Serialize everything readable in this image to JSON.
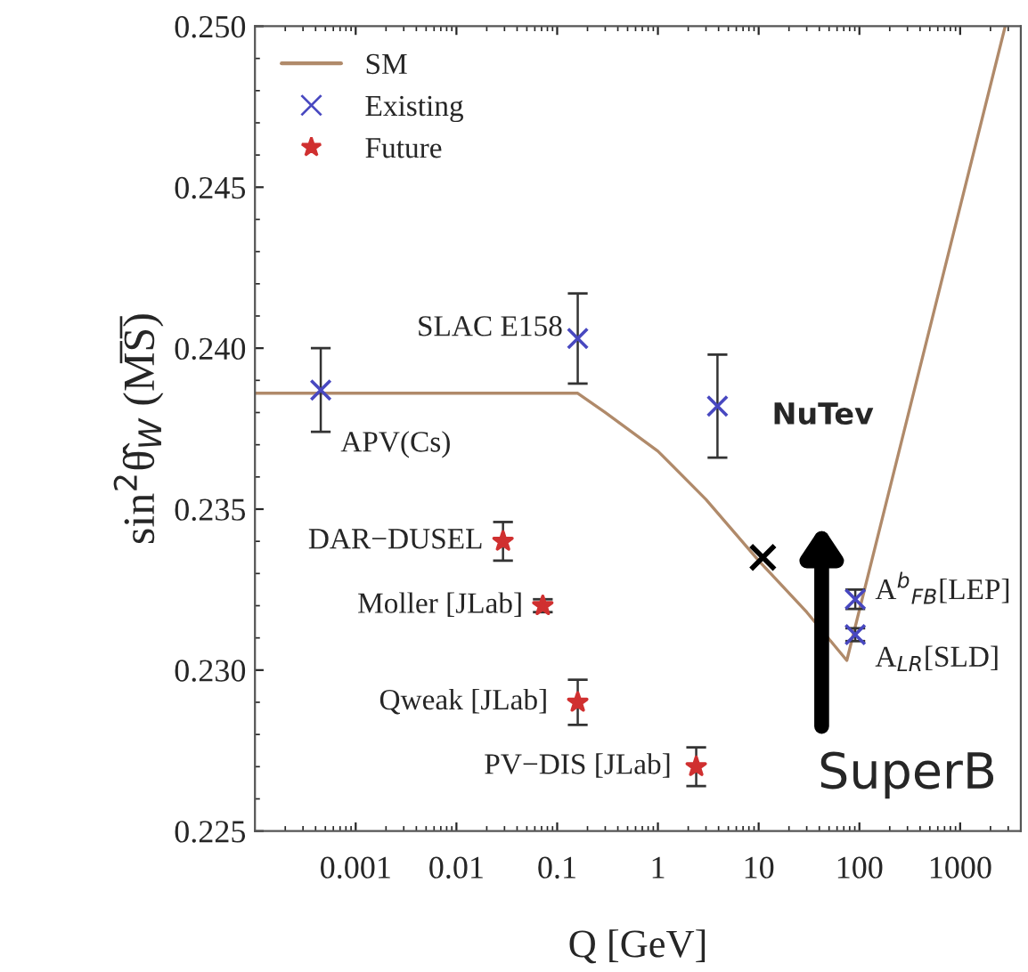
{
  "chart_data": {
    "type": "scatter",
    "xlabel": "Q [GeV]",
    "ylabel": "sin$^{2}$θ̂$_{W}$ (M̅S̅)",
    "log": "x",
    "xlim": [
      0.0001,
      4000
    ],
    "xticks": [
      0.001,
      0.01,
      0.1,
      1,
      10,
      100,
      1000
    ],
    "ylim": [
      0.225,
      0.25
    ],
    "yticks": [
      {
        "value": 0.225,
        "label": "0.225"
      },
      {
        "value": 0.23,
        "label": "0.230"
      },
      {
        "value": 0.235,
        "label": "0.235"
      },
      {
        "value": 0.24,
        "label": "0.240"
      },
      {
        "value": 0.245,
        "label": "0.245"
      },
      {
        "value": 0.25,
        "label": "0.250"
      }
    ],
    "grid": false,
    "legend": "top left",
    "series": [
      {
        "name": "SM",
        "type": "line",
        "color": "#b08a6a",
        "marker": "none",
        "x": [
          0.0001,
          0.16,
          0.3,
          1,
          3,
          10,
          30,
          75,
          2800
        ],
        "values": [
          0.2386,
          0.2386,
          0.238,
          0.2368,
          0.2353,
          0.2334,
          0.2318,
          0.2303,
          0.25
        ]
      },
      {
        "name": "Existing",
        "color": "#4848c0",
        "marker": "cross",
        "x": [
          0.00045,
          0.16,
          3.9,
          91,
          91
        ],
        "values": [
          0.2387,
          0.2403,
          0.2382,
          0.2322,
          0.2311
        ],
        "errors": [
          0.0013,
          0.0014,
          0.0016,
          0.0003,
          0.0002
        ]
      },
      {
        "name": "Future",
        "color": "#d03030",
        "marker": "star",
        "x": [
          0.029,
          0.072,
          0.16,
          2.4
        ],
        "values": [
          0.234,
          0.232,
          0.229,
          0.227
        ],
        "errors": [
          0.0006,
          0.0002,
          0.0007,
          0.0006
        ]
      },
      {
        "color": "#000000",
        "marker": "cross",
        "x": [
          11
        ],
        "values": [
          0.2335
        ]
      }
    ],
    "annotations": [
      {
        "text": "APV(Cs)",
        "x": 0.00045,
        "y": 0.2387
      },
      {
        "text": "SLAC E158",
        "x": 0.16,
        "y": 0.2403
      },
      {
        "text": "NuTev",
        "x": 3.9,
        "y": 0.2382
      },
      {
        "text": "A$^{b}$$_{FB}$[LEP]",
        "x": 91,
        "y": 0.2322
      },
      {
        "text": "A$_{LR}$[SLD]",
        "x": 91,
        "y": 0.2311
      },
      {
        "text": "DAR−DUSEL",
        "x": 0.029,
        "y": 0.234
      },
      {
        "text": "Moller [JLab]",
        "x": 0.072,
        "y": 0.232
      },
      {
        "text": "Qweak [JLab]",
        "x": 0.16,
        "y": 0.229
      },
      {
        "text": "PV−DIS [JLab]",
        "x": 2.4,
        "y": 0.227
      },
      "SuperB"
    ]
  }
}
